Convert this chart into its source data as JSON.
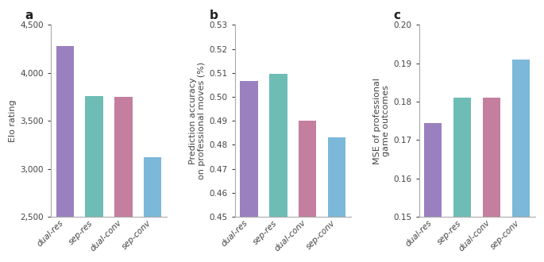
{
  "categories": [
    "dual-res",
    "sep-res",
    "dual-conv",
    "sep-conv"
  ],
  "bar_colors": [
    "#9b80c0",
    "#6dbdb5",
    "#c47e9e",
    "#7bb8d9"
  ],
  "panel_a": {
    "values": [
      4280,
      3760,
      3750,
      3120
    ],
    "ylabel": "Elo rating",
    "ylim": [
      2500,
      4500
    ],
    "yticks": [
      2500,
      3000,
      3500,
      4000,
      4500
    ]
  },
  "panel_b": {
    "values": [
      0.5065,
      0.5095,
      0.49,
      0.483
    ],
    "ylabel": "Prediction accuracy\non professional moves (%)",
    "ylim": [
      0.45,
      0.53
    ],
    "yticks": [
      0.45,
      0.46,
      0.47,
      0.48,
      0.49,
      0.5,
      0.51,
      0.52,
      0.53
    ]
  },
  "panel_c": {
    "values": [
      0.1745,
      0.181,
      0.181,
      0.191
    ],
    "ylabel": "MSE of professional\ngame outcomes",
    "ylim": [
      0.15,
      0.2
    ],
    "yticks": [
      0.15,
      0.16,
      0.17,
      0.18,
      0.19,
      0.2
    ]
  },
  "panel_labels": [
    "a",
    "b",
    "c"
  ],
  "background_color": "#ffffff",
  "spine_color": "#aaaaaa",
  "label_fontsize": 8,
  "tick_fontsize": 7.5,
  "panel_label_fontsize": 11,
  "bar_width": 0.6
}
